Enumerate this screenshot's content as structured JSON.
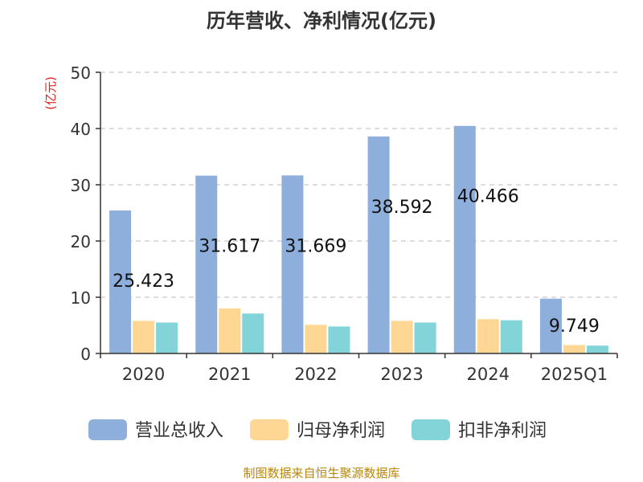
{
  "title": "历年营收、净利情况(亿元)",
  "source": "制图数据来自恒生聚源数据库",
  "colors": {
    "revenue": "#8eaedb",
    "parent_profit": "#fdd793",
    "deducted_profit": "#83d4d8",
    "unit_label": "#e0201c",
    "grid": "#bbbbbb",
    "axis": "#333333",
    "text": "#333333"
  },
  "chart_data": {
    "type": "bar",
    "title": "历年营收、净利情况(亿元)",
    "ylabel": "(亿元)",
    "xlabel": "",
    "ylim": [
      0,
      50
    ],
    "yticks": [
      0,
      10,
      20,
      30,
      40,
      50
    ],
    "grid": true,
    "legend_position": "bottom",
    "categories": [
      "2020",
      "2021",
      "2022",
      "2023",
      "2024",
      "2025Q1"
    ],
    "series": [
      {
        "name": "营业总收入",
        "color": "#8eaedb",
        "values": [
          25.423,
          31.617,
          31.669,
          38.592,
          40.466,
          9.749
        ],
        "labels": [
          "25.423",
          "31.617",
          "31.669",
          "38.592",
          "40.466",
          "9.749"
        ]
      },
      {
        "name": "归母净利润",
        "color": "#fdd793",
        "values": [
          5.8,
          8.0,
          5.1,
          5.8,
          6.1,
          1.5
        ]
      },
      {
        "name": "扣非净利润",
        "color": "#83d4d8",
        "values": [
          5.5,
          7.1,
          4.8,
          5.5,
          5.9,
          1.4
        ]
      }
    ]
  }
}
